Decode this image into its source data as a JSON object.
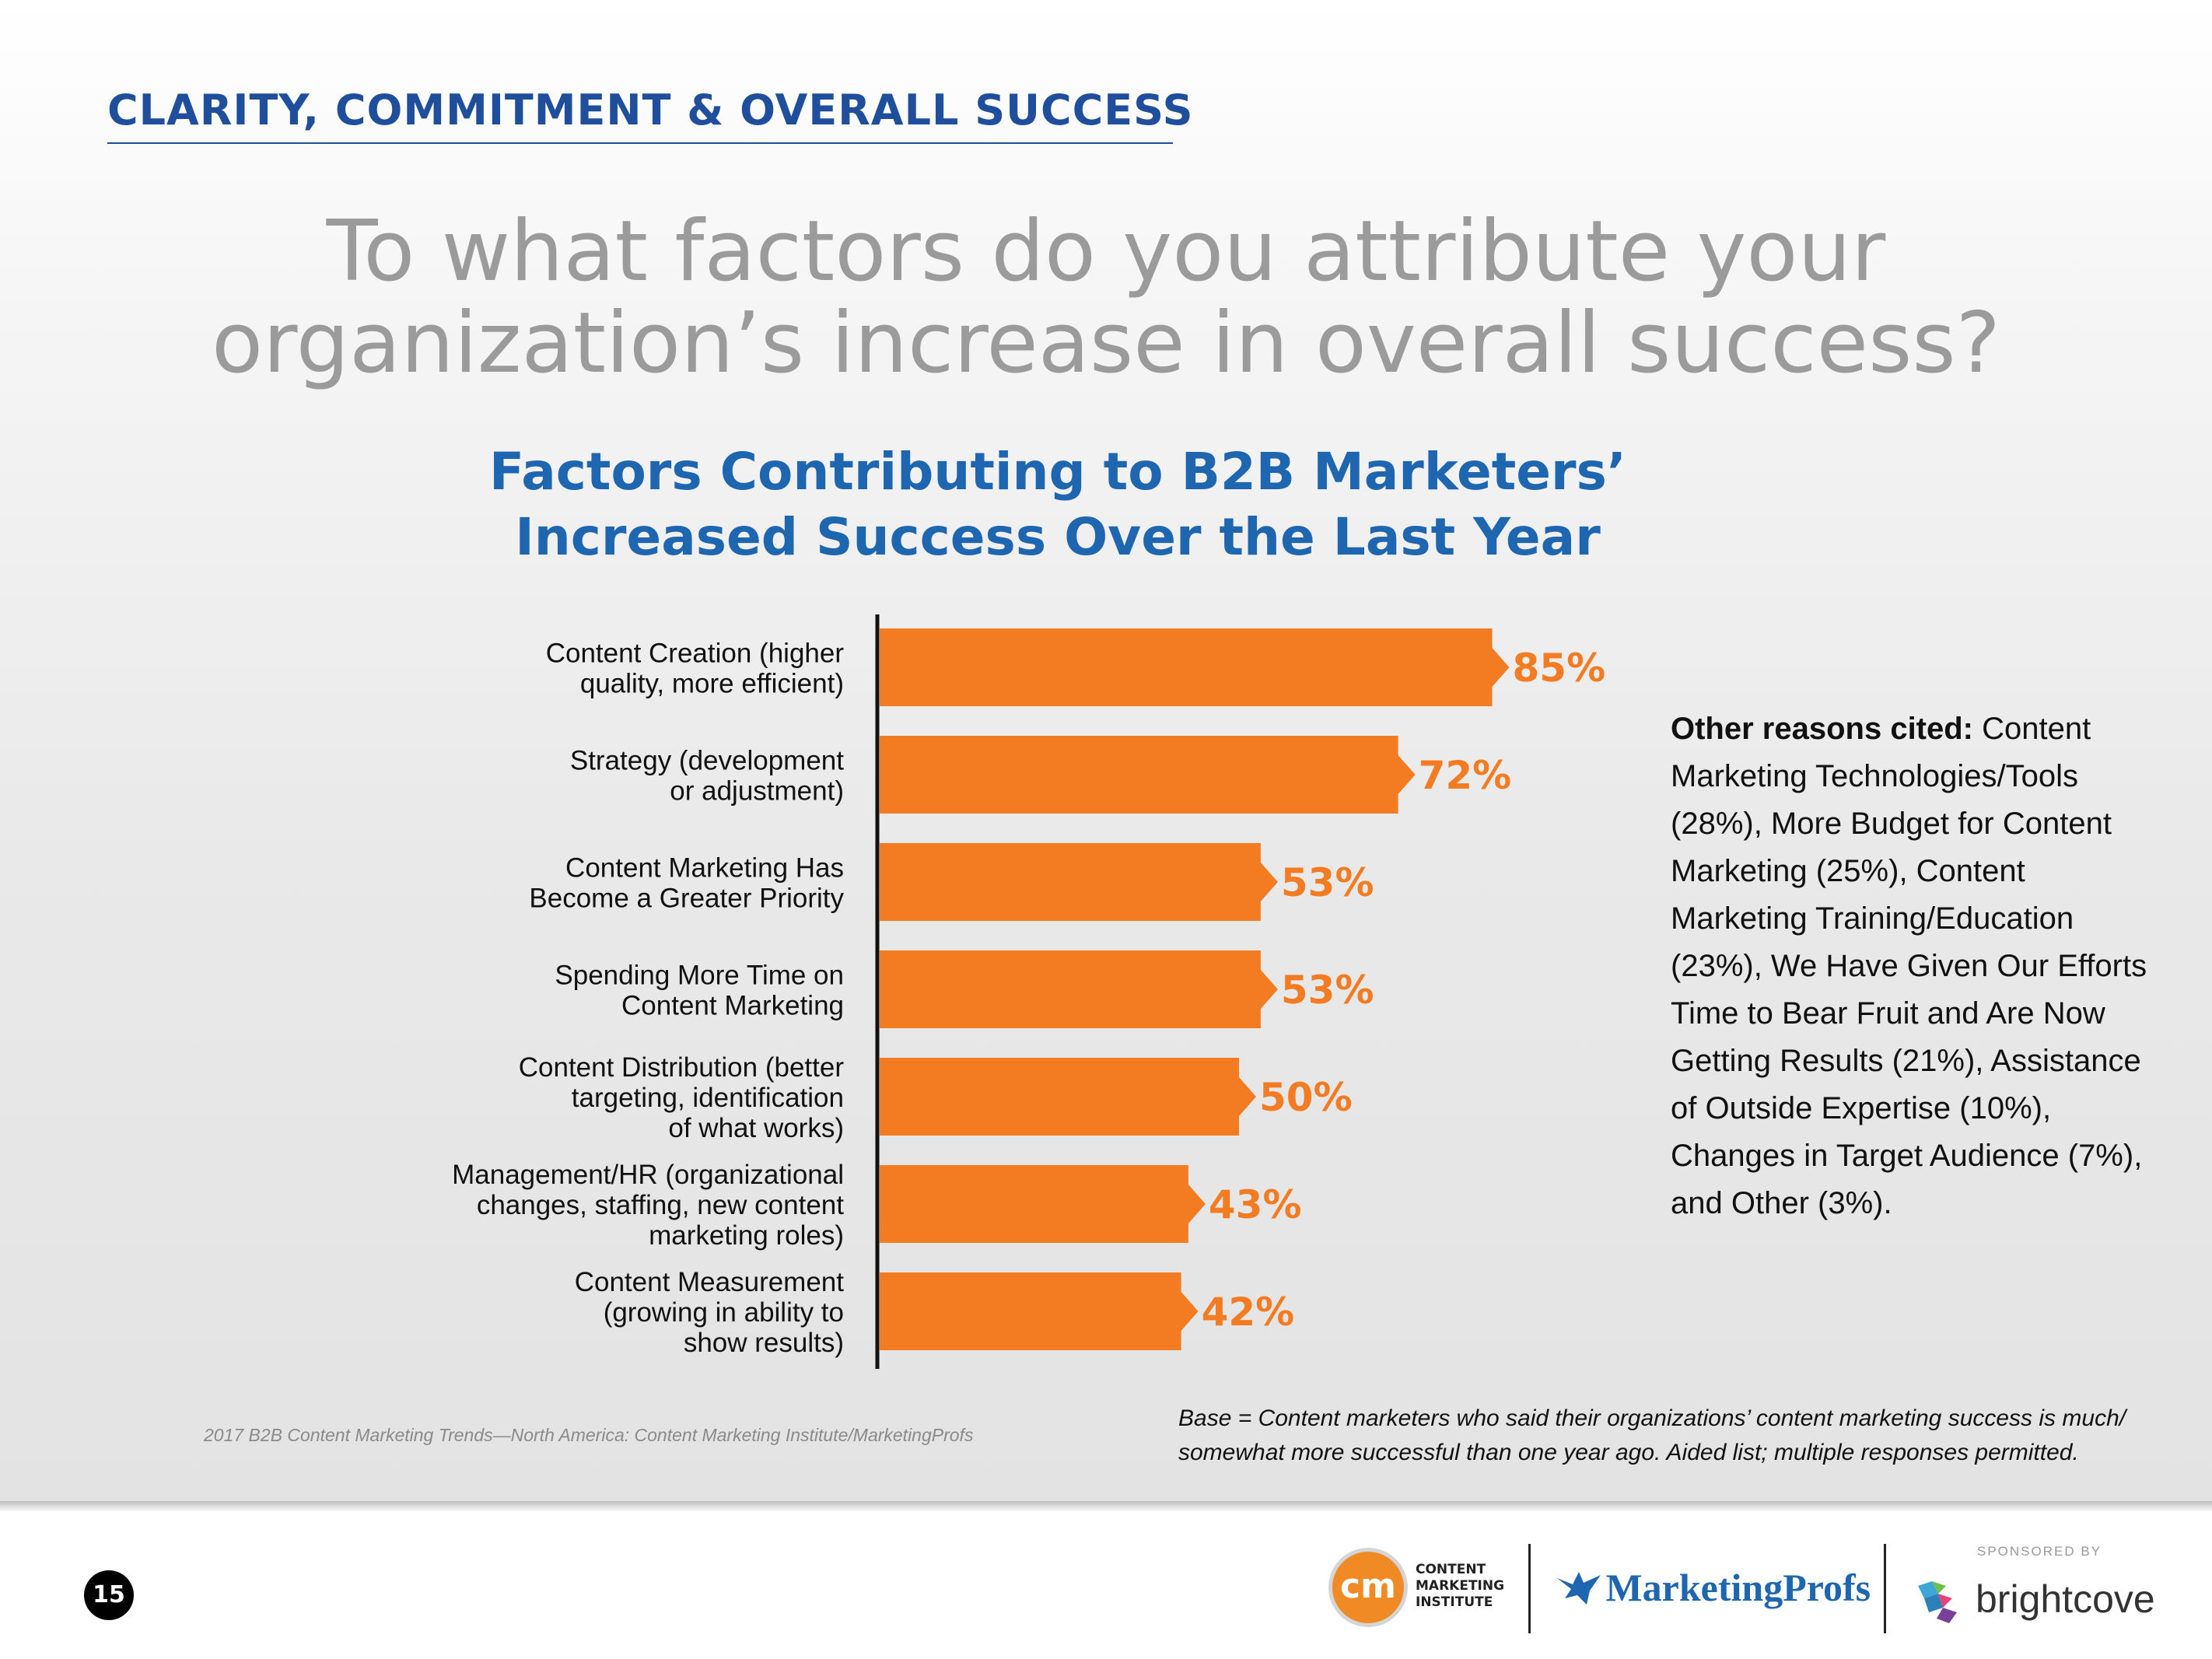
{
  "header": {
    "section_title": "CLARITY, COMMITMENT & OVERALL SUCCESS"
  },
  "question": {
    "line1": "To what factors do you attribute your",
    "line2": "organization’s increase in overall success?"
  },
  "chart_data": {
    "type": "bar",
    "orientation": "horizontal",
    "title_lines": [
      "Factors Contributing to B2B Marketers’",
      "Increased Success Over the Last Year"
    ],
    "categories": [
      [
        "Content Creation (higher",
        "quality, more efficient)"
      ],
      [
        "Strategy (development",
        "or adjustment)"
      ],
      [
        "Content Marketing Has",
        "Become a Greater Priority"
      ],
      [
        "Spending More Time on",
        "Content Marketing"
      ],
      [
        "Content Distribution (better",
        "targeting, identification",
        "of what works)"
      ],
      [
        "Management/HR (organizational",
        "changes, staffing, new content",
        "marketing roles)"
      ],
      [
        "Content Measurement",
        "(growing in ability to",
        "show results)"
      ]
    ],
    "values": [
      85,
      72,
      53,
      53,
      50,
      43,
      42
    ],
    "value_labels": [
      "85%",
      "72%",
      "53%",
      "53%",
      "50%",
      "43%",
      "42%"
    ],
    "xlim": [
      0,
      100
    ],
    "bar_color": "#f37c22",
    "label_color": "#f37c22",
    "axis_color": "#111111"
  },
  "other_reasons": {
    "lead": "Other reasons cited:",
    "text": " Content Marketing Technologies/Tools (28%), More Budget for Content Marketing (25%), Content Marketing Training/Education (23%), We Have Given Our Efforts Time to Bear Fruit and Are Now Getting Results (21%), Assistance of Outside Expertise (10%), Changes in Target Audience (7%), and Other (3%)."
  },
  "notes": {
    "source": "2017 B2B Content Marketing Trends—North America: Content Marketing Institute/MarketingProfs",
    "base": "Base = Content marketers who said their organizations’ content marketing success is much/ somewhat more successful than one year ago. Aided list; multiple responses permitted."
  },
  "footer": {
    "page_number": "15",
    "cmi_monogram": "cm",
    "cmi_line1": "CONTENT",
    "cmi_line2": "MARKETING",
    "cmi_line3": "INSTITUTE",
    "marketingprofs": "MarketingProfs",
    "sponsored_by": "SPONSORED BY",
    "brightcove": "brightcove"
  }
}
